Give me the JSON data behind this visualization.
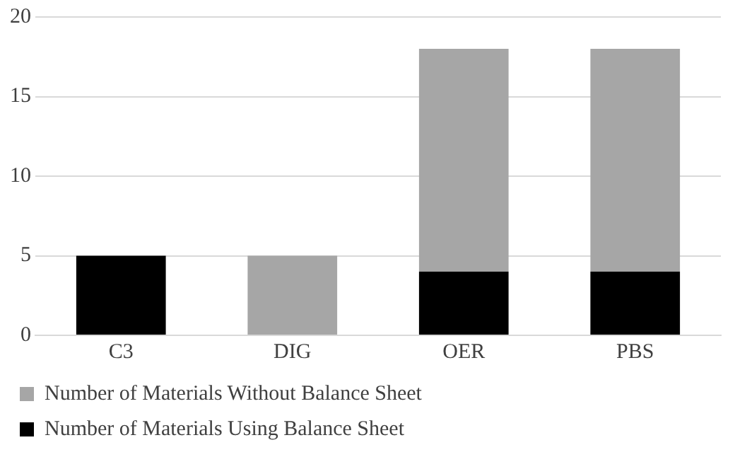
{
  "chart_data": {
    "type": "bar",
    "stacked": true,
    "categories": [
      "C3",
      "DIG",
      "OER",
      "PBS"
    ],
    "series": [
      {
        "name": "Number of Materials Using Balance Sheet",
        "color": "#000000",
        "values": [
          5,
          0,
          4,
          4
        ]
      },
      {
        "name": "Number of Materials Without Balance Sheet",
        "color": "#a6a6a6",
        "values": [
          0,
          5,
          14,
          14
        ]
      }
    ],
    "ylim": [
      0,
      20
    ],
    "yticks": [
      0,
      5,
      10,
      15,
      20
    ],
    "grid": "y",
    "legend": "bottom"
  }
}
